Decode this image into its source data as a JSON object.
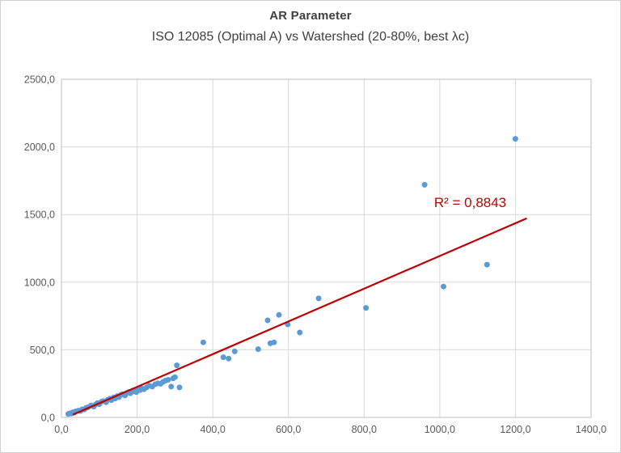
{
  "chart_data": {
    "type": "scatter",
    "title": "AR Parameter",
    "subtitle": "ISO 12085 (Optimal A) vs Watershed (20-80%, best λc)",
    "xlabel": "",
    "ylabel": "",
    "xlim": [
      0,
      1400
    ],
    "ylim": [
      0,
      2500
    ],
    "grid": true,
    "legend": "none",
    "x_ticks": [
      {
        "value": 0,
        "label": "0,0"
      },
      {
        "value": 200,
        "label": "200,0"
      },
      {
        "value": 400,
        "label": "400,0"
      },
      {
        "value": 600,
        "label": "600,0"
      },
      {
        "value": 800,
        "label": "800,0"
      },
      {
        "value": 1000,
        "label": "1000,0"
      },
      {
        "value": 1200,
        "label": "1200,0"
      },
      {
        "value": 1400,
        "label": "1400,0"
      }
    ],
    "y_ticks": [
      {
        "value": 0,
        "label": "0,0"
      },
      {
        "value": 500,
        "label": "500,0"
      },
      {
        "value": 1000,
        "label": "1000,0"
      },
      {
        "value": 1500,
        "label": "1500,0"
      },
      {
        "value": 2000,
        "label": "2000,0"
      },
      {
        "value": 2500,
        "label": "2500,0"
      }
    ],
    "points": [
      [
        18,
        25
      ],
      [
        22,
        30
      ],
      [
        26,
        28
      ],
      [
        30,
        38
      ],
      [
        34,
        35
      ],
      [
        38,
        45
      ],
      [
        45,
        50
      ],
      [
        50,
        48
      ],
      [
        55,
        60
      ],
      [
        60,
        58
      ],
      [
        65,
        70
      ],
      [
        70,
        75
      ],
      [
        78,
        88
      ],
      [
        85,
        80
      ],
      [
        90,
        95
      ],
      [
        95,
        105
      ],
      [
        100,
        98
      ],
      [
        105,
        115
      ],
      [
        110,
        120
      ],
      [
        118,
        112
      ],
      [
        122,
        130
      ],
      [
        128,
        138
      ],
      [
        132,
        128
      ],
      [
        138,
        148
      ],
      [
        142,
        140
      ],
      [
        148,
        158
      ],
      [
        152,
        150
      ],
      [
        158,
        168
      ],
      [
        162,
        172
      ],
      [
        168,
        162
      ],
      [
        172,
        180
      ],
      [
        178,
        188
      ],
      [
        182,
        178
      ],
      [
        188,
        198
      ],
      [
        192,
        192
      ],
      [
        198,
        188
      ],
      [
        202,
        208
      ],
      [
        208,
        202
      ],
      [
        212,
        215
      ],
      [
        218,
        208
      ],
      [
        225,
        222
      ],
      [
        232,
        235
      ],
      [
        240,
        228
      ],
      [
        248,
        245
      ],
      [
        255,
        252
      ],
      [
        262,
        248
      ],
      [
        268,
        262
      ],
      [
        275,
        272
      ],
      [
        282,
        278
      ],
      [
        290,
        228
      ],
      [
        295,
        288
      ],
      [
        300,
        298
      ],
      [
        305,
        385
      ],
      [
        312,
        222
      ],
      [
        375,
        555
      ],
      [
        428,
        445
      ],
      [
        442,
        435
      ],
      [
        458,
        488
      ],
      [
        520,
        505
      ],
      [
        545,
        718
      ],
      [
        552,
        548
      ],
      [
        562,
        555
      ],
      [
        575,
        758
      ],
      [
        598,
        688
      ],
      [
        630,
        628
      ],
      [
        680,
        880
      ],
      [
        805,
        810
      ],
      [
        960,
        1720
      ],
      [
        1010,
        968
      ],
      [
        1125,
        1130
      ],
      [
        1200,
        2060
      ]
    ],
    "trendline": {
      "x1": 30,
      "y1": 20,
      "x2": 1230,
      "y2": 1472
    },
    "annotation": {
      "text": "R² = 0,8843",
      "x": 985,
      "y": 1555
    },
    "colors": {
      "point": "#5B9BD5",
      "trend": "#C00000",
      "annotation": "#C00000",
      "grid": "#D9D9D9",
      "plot_border": "#BFBFBF",
      "tick_text": "#595959",
      "title_text": "#404040"
    }
  }
}
